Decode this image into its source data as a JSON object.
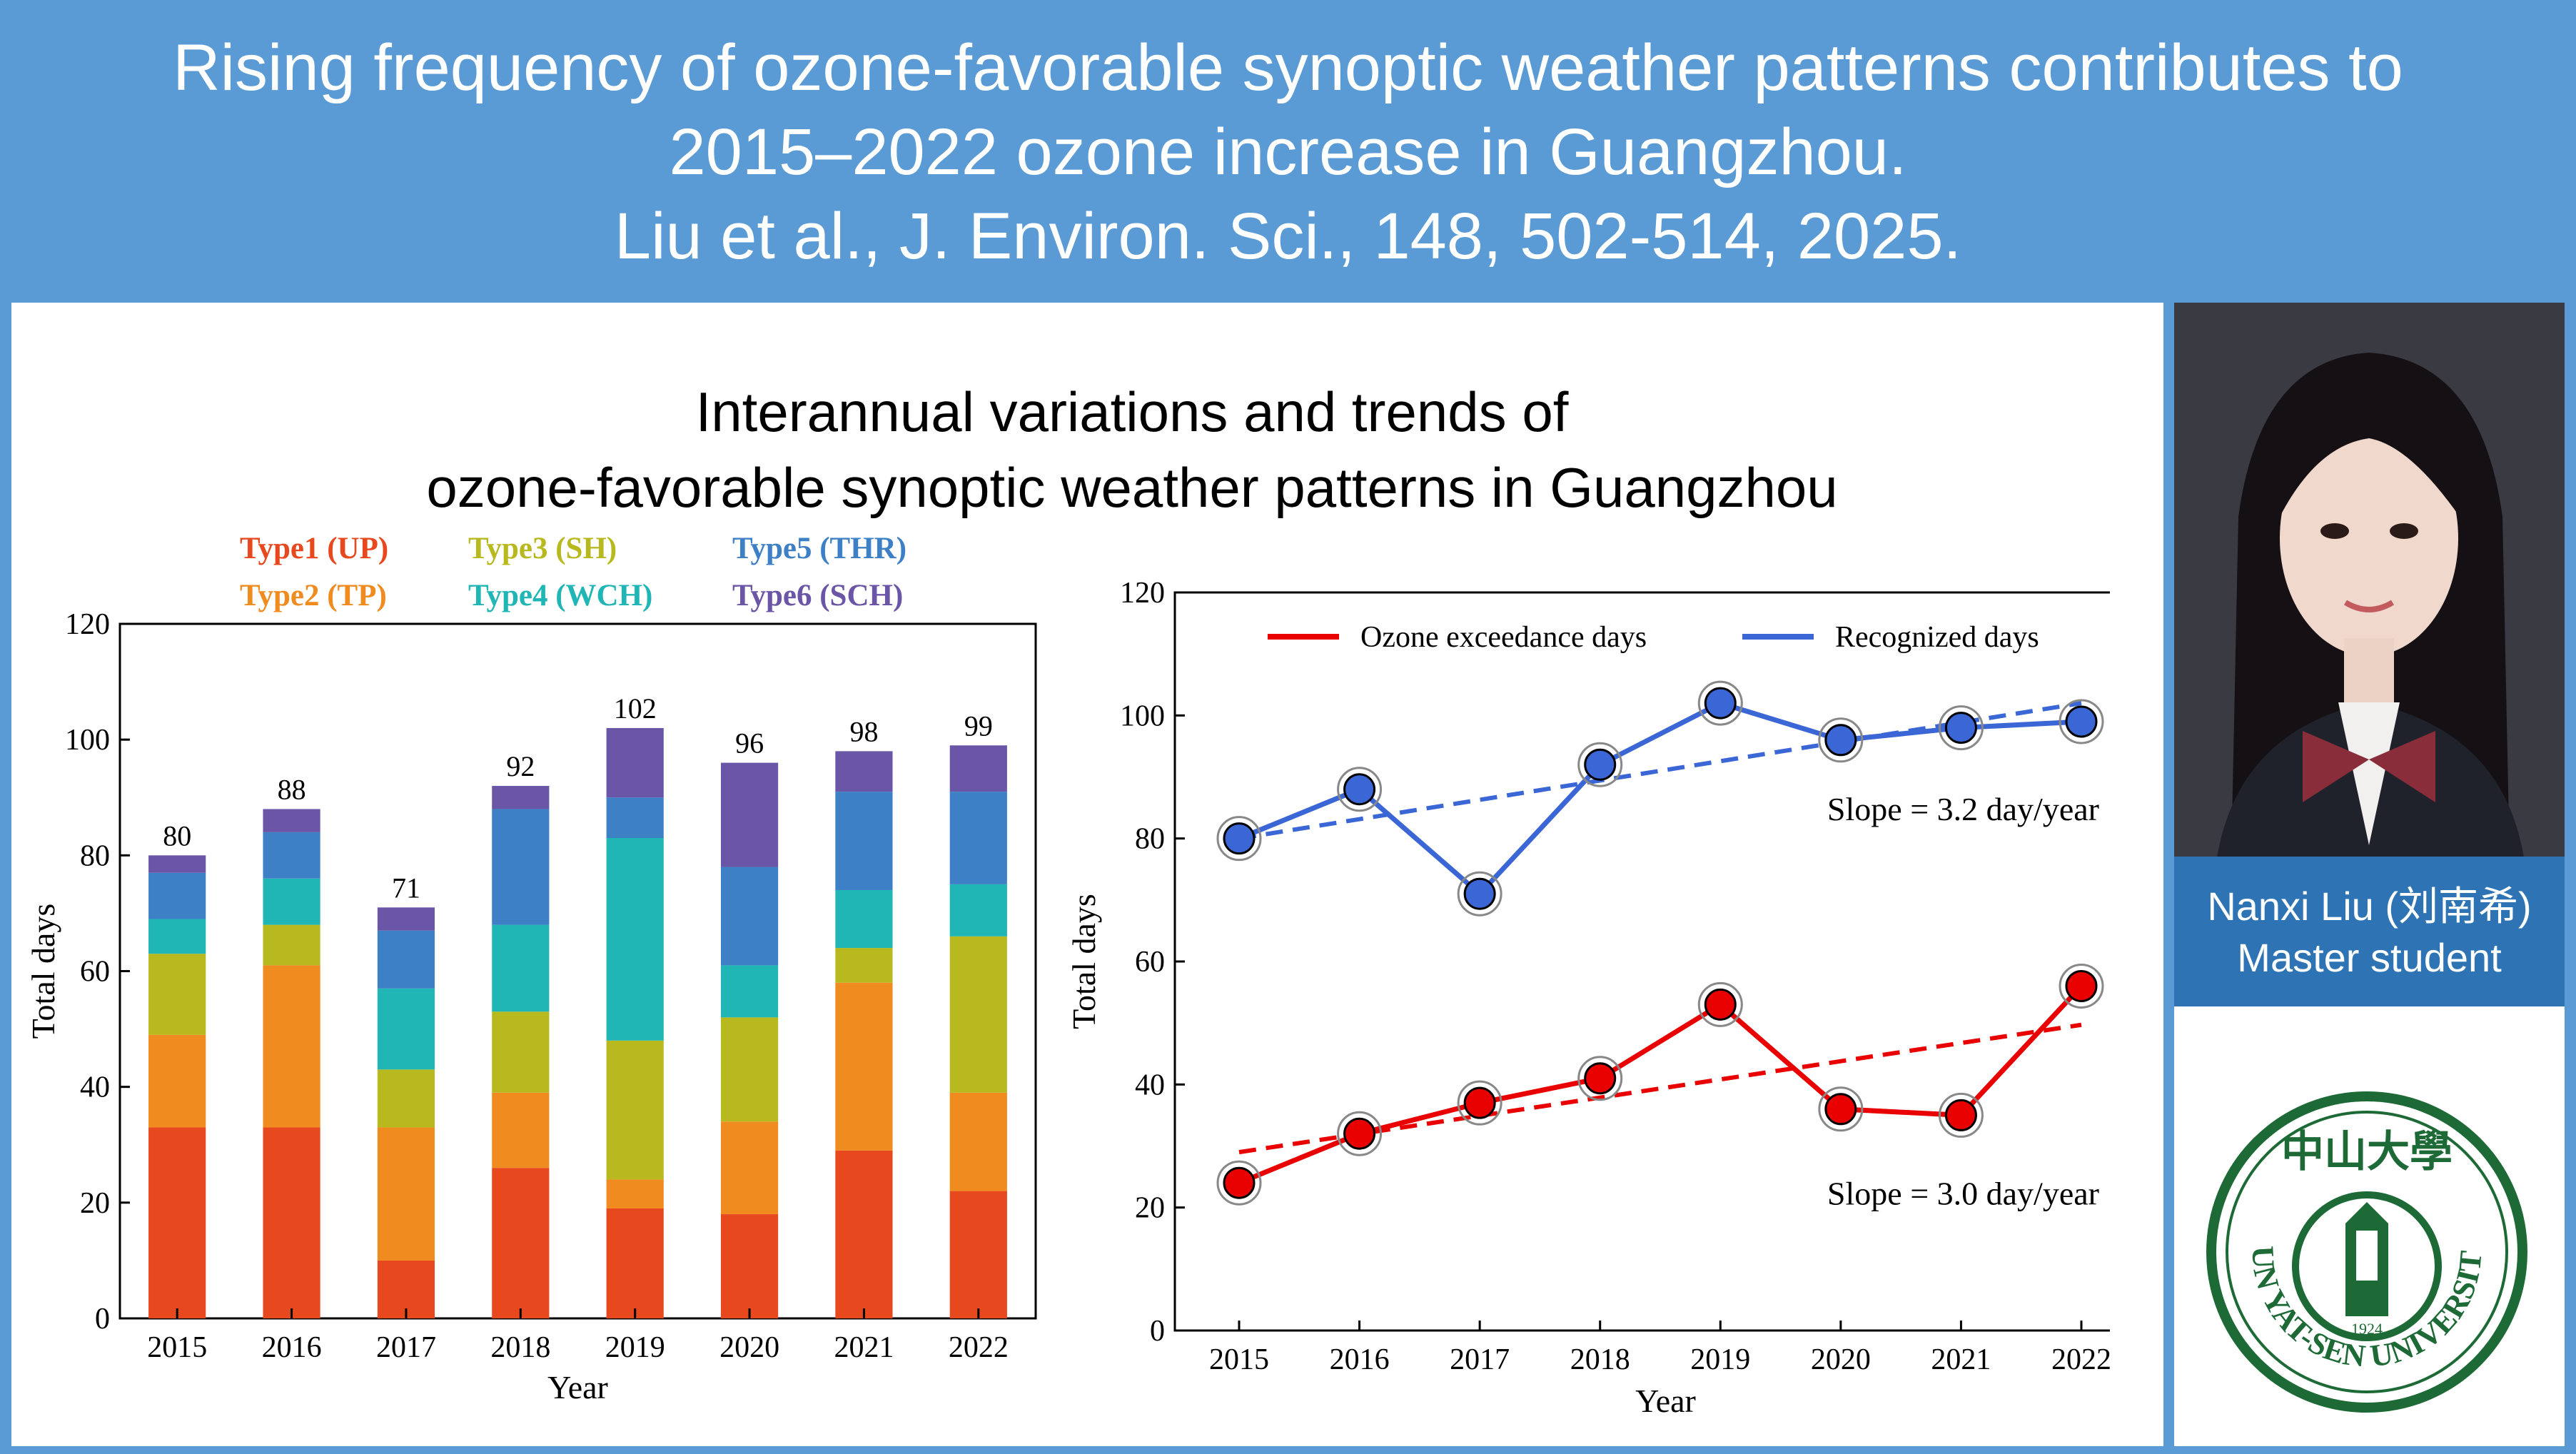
{
  "header": {
    "line1": "Rising frequency of ozone-favorable synoptic weather patterns contributes to",
    "line2": "2015–2022 ozone increase in Guangzhou.",
    "line3": "Liu et al., J. Environ. Sci., 148, 502-514, 2025."
  },
  "figure": {
    "title_line1": "Interannual variations and trends of",
    "title_line2": "ozone-favorable synoptic weather patterns in Guangzhou"
  },
  "profile": {
    "name": "Nanxi Liu (刘南希)",
    "role": "Master student",
    "logo_text": "SUN YAT-SEN UNIVERSITY",
    "logo_chinese": "中山大學",
    "logo_year": "1924"
  },
  "colors": {
    "type1": "#e8481e",
    "type2": "#f08b1f",
    "type3": "#b8b91f",
    "type4": "#1fb6b5",
    "type5": "#3d80c6",
    "type6": "#6a55a6",
    "ozone": "#e90000",
    "recognized": "#3b67d6",
    "brand_blue": "#5b9bd5",
    "name_box": "#2e74b5",
    "sysu_green": "#1d6a36"
  },
  "chart_data": [
    {
      "type": "bar",
      "stacked": true,
      "categories": [
        "2015",
        "2016",
        "2017",
        "2018",
        "2019",
        "2020",
        "2021",
        "2022"
      ],
      "series": [
        {
          "name": "Type1 (UP)",
          "color_key": "type1",
          "values": [
            33,
            33,
            10,
            26,
            19,
            18,
            29,
            22
          ]
        },
        {
          "name": "Type2 (TP)",
          "color_key": "type2",
          "values": [
            16,
            28,
            23,
            13,
            5,
            16,
            29,
            17
          ]
        },
        {
          "name": "Type3 (SH)",
          "color_key": "type3",
          "values": [
            14,
            7,
            10,
            14,
            24,
            18,
            6,
            27
          ]
        },
        {
          "name": "Type4 (WCH)",
          "color_key": "type4",
          "values": [
            6,
            8,
            14,
            15,
            35,
            9,
            10,
            9
          ]
        },
        {
          "name": "Type5 (THR)",
          "color_key": "type5",
          "values": [
            8,
            8,
            10,
            20,
            7,
            17,
            17,
            16
          ]
        },
        {
          "name": "Type6 (SCH)",
          "color_key": "type6",
          "values": [
            3,
            4,
            4,
            4,
            12,
            18,
            7,
            8
          ]
        }
      ],
      "totals": [
        80,
        88,
        71,
        92,
        102,
        96,
        98,
        99
      ],
      "yticks": [
        "0",
        "20",
        "40",
        "60",
        "80",
        "100",
        "120"
      ],
      "xlabel": "Year",
      "ylabel": "Total days",
      "ylim": [
        0,
        120
      ],
      "legend_position": "top"
    },
    {
      "type": "line",
      "x": [
        "2015",
        "2016",
        "2017",
        "2018",
        "2019",
        "2020",
        "2021",
        "2022"
      ],
      "series": [
        {
          "name": "Ozone exceedance days",
          "color_key": "ozone",
          "values": [
            24,
            32,
            37,
            41,
            53,
            36,
            35,
            56
          ],
          "trend": [
            29,
            49.7
          ]
        },
        {
          "name": "Recognized days",
          "color_key": "recognized",
          "values": [
            80,
            88,
            71,
            92,
            102,
            96,
            98,
            99
          ],
          "trend": [
            80,
            102
          ]
        }
      ],
      "annotations": [
        "Slope = 3.2 day/year",
        "Slope = 3.0 day/year"
      ],
      "yticks": [
        "0",
        "20",
        "40",
        "60",
        "80",
        "100",
        "120"
      ],
      "xlabel": "Year",
      "ylabel": "Total days",
      "ylim": [
        0,
        120
      ],
      "legend_position": "top"
    }
  ]
}
